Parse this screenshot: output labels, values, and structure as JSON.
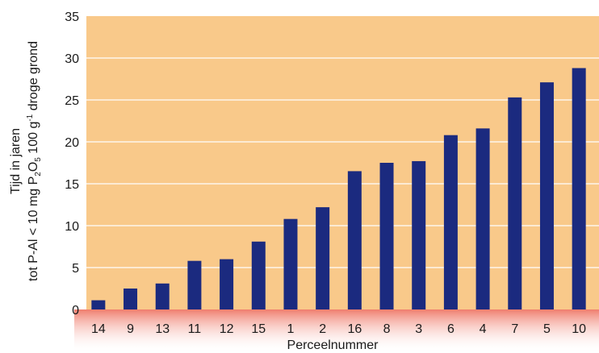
{
  "chart_data": {
    "type": "bar",
    "categories": [
      "14",
      "9",
      "13",
      "11",
      "12",
      "15",
      "1",
      "2",
      "16",
      "8",
      "3",
      "6",
      "4",
      "7",
      "5",
      "10"
    ],
    "values": [
      1.1,
      2.5,
      3.1,
      5.8,
      6.0,
      8.1,
      10.8,
      12.2,
      16.5,
      17.5,
      17.7,
      20.8,
      21.6,
      25.3,
      27.1,
      28.8
    ],
    "xlabel": "Perceelnummer",
    "ylabel": {
      "line1": "Tijd in jaren",
      "line2_a": "tot P-Al < 10 mg P",
      "line2_sub1": "2",
      "line2_b": "O",
      "line2_sub2": "5",
      "line2_c": " 100 g",
      "line2_sup": "-1",
      "line2_d": " droge grond"
    },
    "ylim": [
      0,
      35
    ],
    "yticks": [
      0,
      5,
      10,
      15,
      20,
      25,
      30,
      35
    ],
    "grid": true,
    "colors": {
      "plot_background": "#F9C98A",
      "gridline": "#FFFFFF",
      "bar": "#1B2A7F",
      "xaxis_band": "#EE6F5D"
    }
  }
}
